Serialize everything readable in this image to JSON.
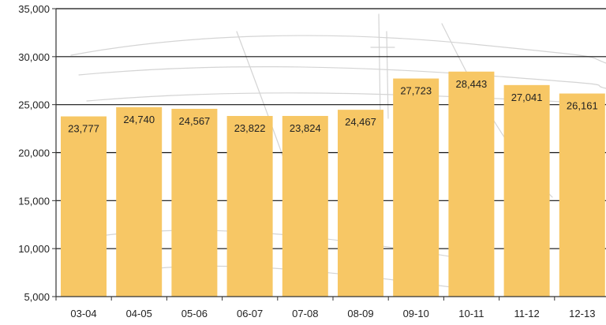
{
  "chart_data": {
    "type": "bar",
    "title": "",
    "xlabel": "",
    "ylabel": "",
    "categories": [
      "03-04",
      "04-05",
      "05-06",
      "06-07",
      "07-08",
      "08-09",
      "09-10",
      "10-11",
      "11-12",
      "12-13"
    ],
    "values": [
      23777,
      24740,
      24567,
      23822,
      23824,
      24467,
      27723,
      28443,
      27041,
      26161
    ],
    "data_labels": [
      "23,777",
      "24,740",
      "24,567",
      "23,822",
      "23,824",
      "24,467",
      "27,723",
      "28,443",
      "27,041",
      "26,161"
    ],
    "ylim": [
      5000,
      35000
    ],
    "yticks": [
      5000,
      10000,
      15000,
      20000,
      25000,
      30000,
      35000
    ],
    "ytick_labels": [
      "5,000",
      "10,000",
      "15,000",
      "20,000",
      "25,000",
      "30,000",
      "35,000"
    ],
    "grid": true,
    "legend": "none",
    "colors": {
      "bar": "#F7C765",
      "grid": "#111111",
      "axis": "#333333",
      "text": "#222222",
      "background_sketch": "#d4d4d4"
    }
  }
}
